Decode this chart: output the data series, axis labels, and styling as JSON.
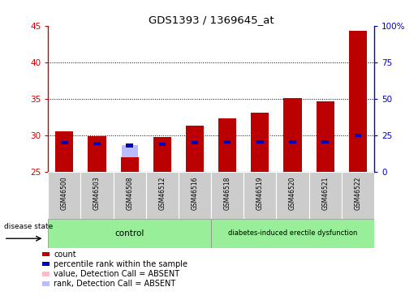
{
  "title": "GDS1393 / 1369645_at",
  "samples": [
    "GSM46500",
    "GSM46503",
    "GSM46508",
    "GSM46512",
    "GSM46516",
    "GSM46518",
    "GSM46519",
    "GSM46520",
    "GSM46521",
    "GSM46522"
  ],
  "count_tops": [
    30.55,
    29.9,
    27.0,
    29.8,
    31.3,
    32.3,
    33.1,
    35.1,
    34.6,
    44.3
  ],
  "pink_tops": [
    30.55,
    25.0,
    27.0,
    29.8,
    31.3,
    25.0,
    25.0,
    25.0,
    25.0,
    25.0
  ],
  "rank_tops_left": [
    29.0,
    28.9,
    28.6,
    28.8,
    29.0,
    29.1,
    29.1,
    29.1,
    29.05,
    30.0
  ],
  "absent_samples": [
    0,
    2,
    3,
    4
  ],
  "ylim_left": [
    25,
    45
  ],
  "ylim_right": [
    0,
    100
  ],
  "yticks_left": [
    25,
    30,
    35,
    40,
    45
  ],
  "yticks_right": [
    0,
    25,
    50,
    75,
    100
  ],
  "ytick_labels_right": [
    "0",
    "25",
    "50",
    "75",
    "100%"
  ],
  "hgrid_at": [
    30,
    35,
    40
  ],
  "bar_width": 0.55,
  "count_color": "#BB0000",
  "rank_color": "#0000BB",
  "pink_color": "#FFBBCC",
  "light_blue_color": "#BBBBFF",
  "group_color": "#99EE99",
  "left_axis_color": "#CC0000",
  "right_axis_color": "#0000CC",
  "n_control": 5,
  "n_diabetes": 5
}
